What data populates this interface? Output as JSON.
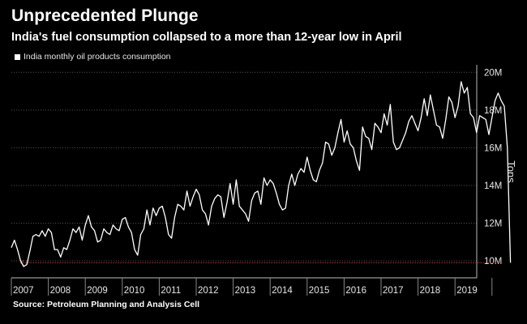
{
  "chart_data": {
    "type": "line",
    "title": "Unprecedented Plunge",
    "subtitle": "India's fuel consumption collapsed to a more than 12-year low in April",
    "source": "Source: Petroleum Planning and Analysis Cell",
    "ylabel": "Tons",
    "ylim": [
      9.1,
      20.4
    ],
    "y_ticks": [
      10,
      12,
      14,
      16,
      18,
      20
    ],
    "y_tick_labels": [
      "10M",
      "12M",
      "14M",
      "16M",
      "18M",
      "20M"
    ],
    "x_ticks": [
      "2007",
      "2008",
      "2009",
      "2010",
      "2011",
      "2012",
      "2013",
      "2014",
      "2015",
      "2016",
      "2017",
      "2018",
      "2019"
    ],
    "grid": "horizontal dotted",
    "legend_position": "top-left",
    "colors": {
      "line": "#ffffff",
      "reference": "#c0392b",
      "background": "#000000",
      "grid": "#555555"
    },
    "reference_line": {
      "value": 9.9,
      "from": "2007-04",
      "to": "2020-04"
    },
    "series": [
      {
        "name": "India monthly oil products consumption",
        "start": "2007-01",
        "values": [
          10.7,
          11.1,
          10.6,
          10.0,
          9.7,
          9.8,
          10.5,
          11.3,
          11.4,
          11.3,
          11.6,
          11.3,
          11.7,
          11.5,
          10.6,
          10.6,
          10.2,
          10.7,
          10.6,
          11.1,
          11.7,
          11.5,
          11.8,
          11.1,
          11.9,
          12.4,
          11.8,
          11.6,
          11.0,
          11.1,
          11.7,
          11.5,
          11.4,
          11.9,
          11.7,
          11.6,
          12.2,
          12.3,
          11.8,
          11.5,
          10.6,
          10.3,
          11.4,
          11.7,
          12.7,
          11.9,
          12.8,
          12.4,
          12.8,
          12.9,
          12.3,
          11.4,
          11.2,
          12.3,
          13.0,
          12.9,
          12.7,
          13.7,
          12.9,
          13.4,
          13.8,
          13.5,
          12.7,
          12.5,
          11.9,
          12.9,
          13.3,
          13.5,
          13.4,
          12.3,
          13.1,
          14.1,
          13.0,
          14.3,
          12.9,
          12.7,
          12.5,
          12.1,
          13.2,
          13.6,
          13.7,
          13.0,
          14.4,
          14.0,
          14.3,
          14.1,
          13.6,
          13.0,
          12.7,
          12.8,
          14.0,
          14.6,
          14.0,
          14.6,
          14.9,
          14.7,
          15.5,
          14.8,
          14.3,
          14.2,
          14.8,
          15.2,
          16.3,
          16.2,
          15.6,
          16.0,
          16.8,
          17.5,
          16.3,
          16.9,
          16.2,
          16.0,
          15.3,
          14.8,
          17.1,
          16.6,
          16.5,
          15.9,
          17.3,
          17.1,
          16.8,
          17.8,
          17.2,
          18.3,
          16.3,
          15.9,
          16.0,
          16.4,
          16.8,
          17.4,
          17.7,
          17.3,
          16.9,
          17.6,
          18.6,
          17.7,
          18.8,
          18.0,
          17.2,
          17.1,
          16.5,
          17.5,
          18.7,
          18.4,
          17.6,
          18.2,
          19.5,
          18.9,
          19.2,
          17.8,
          17.6,
          16.8,
          17.7,
          17.6,
          17.5,
          16.7,
          17.6,
          18.5,
          18.9,
          18.5,
          18.2,
          16.0,
          9.9
        ]
      }
    ]
  }
}
